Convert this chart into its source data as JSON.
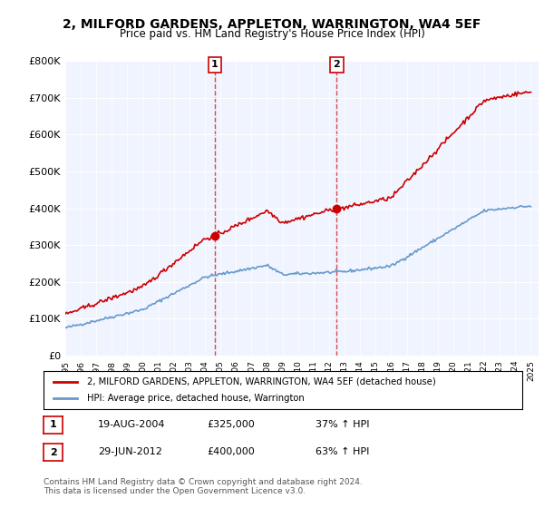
{
  "title": "2, MILFORD GARDENS, APPLETON, WARRINGTON, WA4 5EF",
  "subtitle": "Price paid vs. HM Land Registry's House Price Index (HPI)",
  "ylabel": "",
  "ylim": [
    0,
    800000
  ],
  "yticks": [
    0,
    100000,
    200000,
    300000,
    400000,
    500000,
    600000,
    700000,
    800000
  ],
  "ytick_labels": [
    "£0",
    "£100K",
    "£200K",
    "£300K",
    "£400K",
    "£500K",
    "£600K",
    "£700K",
    "£800K"
  ],
  "sale1_date": 2004.63,
  "sale1_price": 325000,
  "sale1_label": "1",
  "sale2_date": 2012.49,
  "sale2_price": 400000,
  "sale2_label": "2",
  "legend_line1": "2, MILFORD GARDENS, APPLETON, WARRINGTON, WA4 5EF (detached house)",
  "legend_line2": "HPI: Average price, detached house, Warrington",
  "table_row1": [
    "1",
    "19-AUG-2004",
    "£325,000",
    "37% ↑ HPI"
  ],
  "table_row2": [
    "2",
    "29-JUN-2012",
    "£400,000",
    "63% ↑ HPI"
  ],
  "footnote": "Contains HM Land Registry data © Crown copyright and database right 2024.\nThis data is licensed under the Open Government Licence v3.0.",
  "red_color": "#cc0000",
  "blue_color": "#6699cc",
  "vline_color": "#cc0000",
  "background_color": "#ffffff",
  "plot_bg_color": "#f0f4ff"
}
